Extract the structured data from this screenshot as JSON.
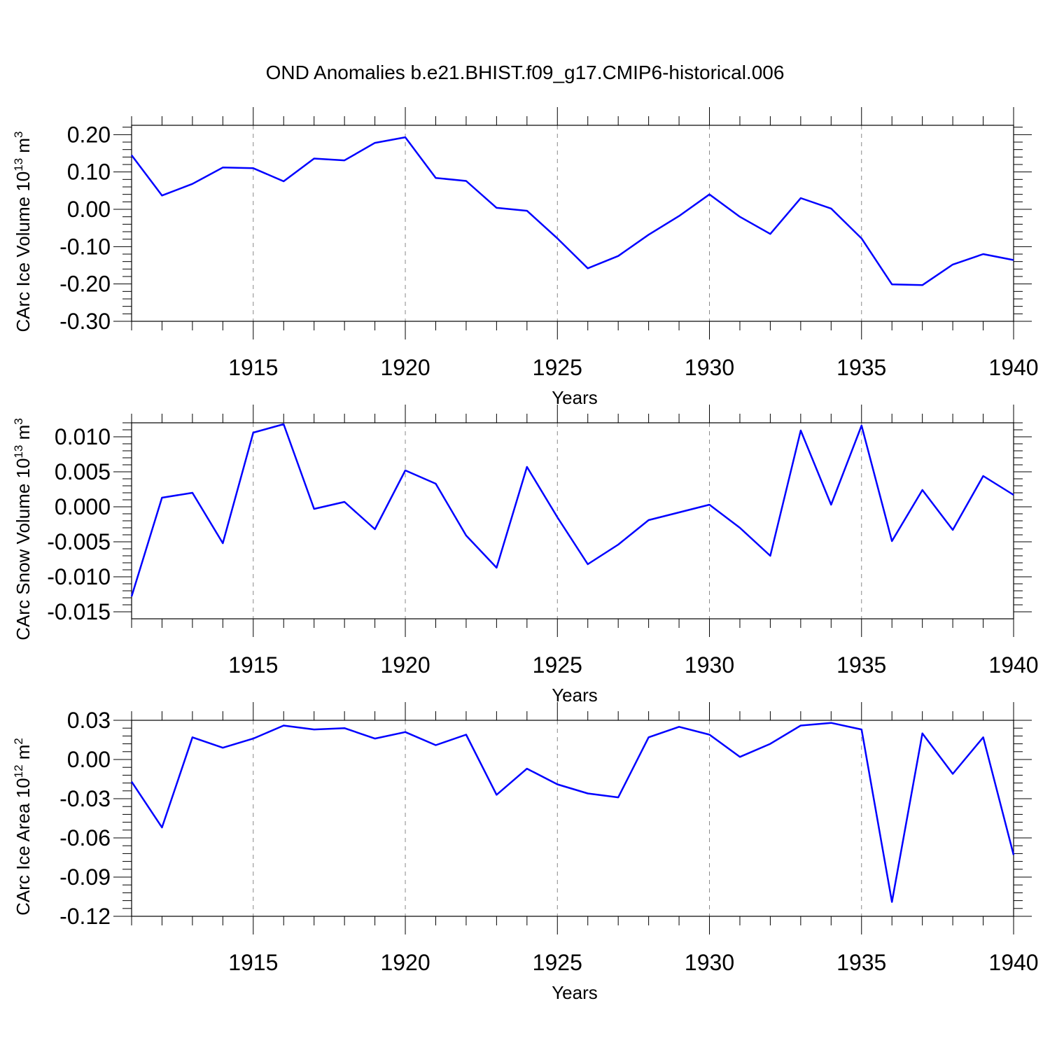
{
  "figure": {
    "title": "OND Anomalies b.e21.BHIST.f09_g17.CMIP6-historical.006"
  },
  "chart_data": [
    {
      "type": "line",
      "ylabel": "CArc Ice Volume 10",
      "ylabel_exp": "13",
      "ylabel_unit": "m",
      "ylabel_unit_exp": "3",
      "xlabel": "Years",
      "xlim": [
        1911,
        1940
      ],
      "ylim": [
        -0.3,
        0.225
      ],
      "yticks": [
        0.2,
        0.1,
        0.0,
        -0.1,
        -0.2,
        -0.3
      ],
      "ytick_labels": [
        "0.20",
        "0.10",
        "0.00",
        "-0.10",
        "-0.20",
        "-0.30"
      ],
      "xticks": [
        1915,
        1920,
        1925,
        1930,
        1935,
        1940
      ],
      "xtick_labels": [
        "1915",
        "1920",
        "1925",
        "1930",
        "1935",
        "1940"
      ],
      "grid": "dashed-vertical-major",
      "color": "#0000ff",
      "x": [
        1911,
        1912,
        1913,
        1914,
        1915,
        1916,
        1917,
        1918,
        1919,
        1920,
        1921,
        1922,
        1923,
        1924,
        1925,
        1926,
        1927,
        1928,
        1929,
        1930,
        1931,
        1932,
        1933,
        1934,
        1935,
        1936,
        1937,
        1938,
        1939,
        1940
      ],
      "y": [
        0.145,
        0.037,
        0.068,
        0.112,
        0.11,
        0.075,
        0.136,
        0.131,
        0.178,
        0.193,
        0.084,
        0.076,
        0.004,
        -0.004,
        -0.078,
        -0.158,
        -0.125,
        -0.068,
        -0.018,
        0.04,
        -0.02,
        -0.066,
        0.03,
        0.002,
        -0.078,
        -0.201,
        -0.203,
        -0.148,
        -0.12,
        -0.136
      ]
    },
    {
      "type": "line",
      "ylabel": "CArc Snow Volume 10",
      "ylabel_exp": "13",
      "ylabel_unit": "m",
      "ylabel_unit_exp": "3",
      "xlabel": "Years",
      "xlim": [
        1911,
        1940
      ],
      "ylim": [
        -0.016,
        0.012
      ],
      "yticks": [
        0.01,
        0.005,
        0.0,
        -0.005,
        -0.01,
        -0.015
      ],
      "ytick_labels": [
        "0.010",
        "0.005",
        "0.000",
        "-0.005",
        "-0.010",
        "-0.015"
      ],
      "xticks": [
        1915,
        1920,
        1925,
        1930,
        1935,
        1940
      ],
      "xtick_labels": [
        "1915",
        "1920",
        "1925",
        "1930",
        "1935",
        "1940"
      ],
      "grid": "dashed-vertical-major",
      "color": "#0000ff",
      "x": [
        1911,
        1912,
        1913,
        1914,
        1915,
        1916,
        1917,
        1918,
        1919,
        1920,
        1921,
        1922,
        1923,
        1924,
        1925,
        1926,
        1927,
        1928,
        1929,
        1930,
        1931,
        1932,
        1933,
        1934,
        1935,
        1936,
        1937,
        1938,
        1939,
        1940
      ],
      "y": [
        -0.0128,
        0.0013,
        0.002,
        -0.0052,
        0.0106,
        0.0118,
        -0.0003,
        0.0007,
        -0.0032,
        0.0052,
        0.0033,
        -0.0041,
        -0.0087,
        0.0057,
        -0.0015,
        -0.0082,
        -0.0054,
        -0.0019,
        -0.0008,
        0.0003,
        -0.003,
        -0.007,
        0.0109,
        0.0003,
        0.0116,
        -0.0049,
        0.0024,
        -0.0033,
        0.0044,
        0.0017
      ]
    },
    {
      "type": "line",
      "ylabel": "CArc Ice Area 10",
      "ylabel_exp": "12",
      "ylabel_unit": "m",
      "ylabel_unit_exp": "2",
      "xlabel": "Years",
      "xlim": [
        1911,
        1940
      ],
      "ylim": [
        -0.12,
        0.03
      ],
      "yticks": [
        0.03,
        0.0,
        -0.03,
        -0.06,
        -0.09,
        -0.12
      ],
      "ytick_labels": [
        "0.03",
        "0.00",
        "-0.03",
        "-0.06",
        "-0.09",
        "-0.12"
      ],
      "xticks": [
        1915,
        1920,
        1925,
        1930,
        1935,
        1940
      ],
      "xtick_labels": [
        "1915",
        "1920",
        "1925",
        "1930",
        "1935",
        "1940"
      ],
      "grid": "dashed-vertical-major",
      "color": "#0000ff",
      "x": [
        1911,
        1912,
        1913,
        1914,
        1915,
        1916,
        1917,
        1918,
        1919,
        1920,
        1921,
        1922,
        1923,
        1924,
        1925,
        1926,
        1927,
        1928,
        1929,
        1930,
        1931,
        1932,
        1933,
        1934,
        1935,
        1936,
        1937,
        1938,
        1939,
        1940
      ],
      "y": [
        -0.017,
        -0.052,
        0.017,
        0.009,
        0.016,
        0.026,
        0.023,
        0.024,
        0.016,
        0.021,
        0.011,
        0.019,
        -0.027,
        -0.007,
        -0.019,
        -0.026,
        -0.029,
        0.017,
        0.025,
        0.019,
        0.002,
        0.012,
        0.026,
        0.028,
        0.023,
        -0.109,
        0.02,
        -0.011,
        0.017,
        -0.073
      ]
    }
  ]
}
